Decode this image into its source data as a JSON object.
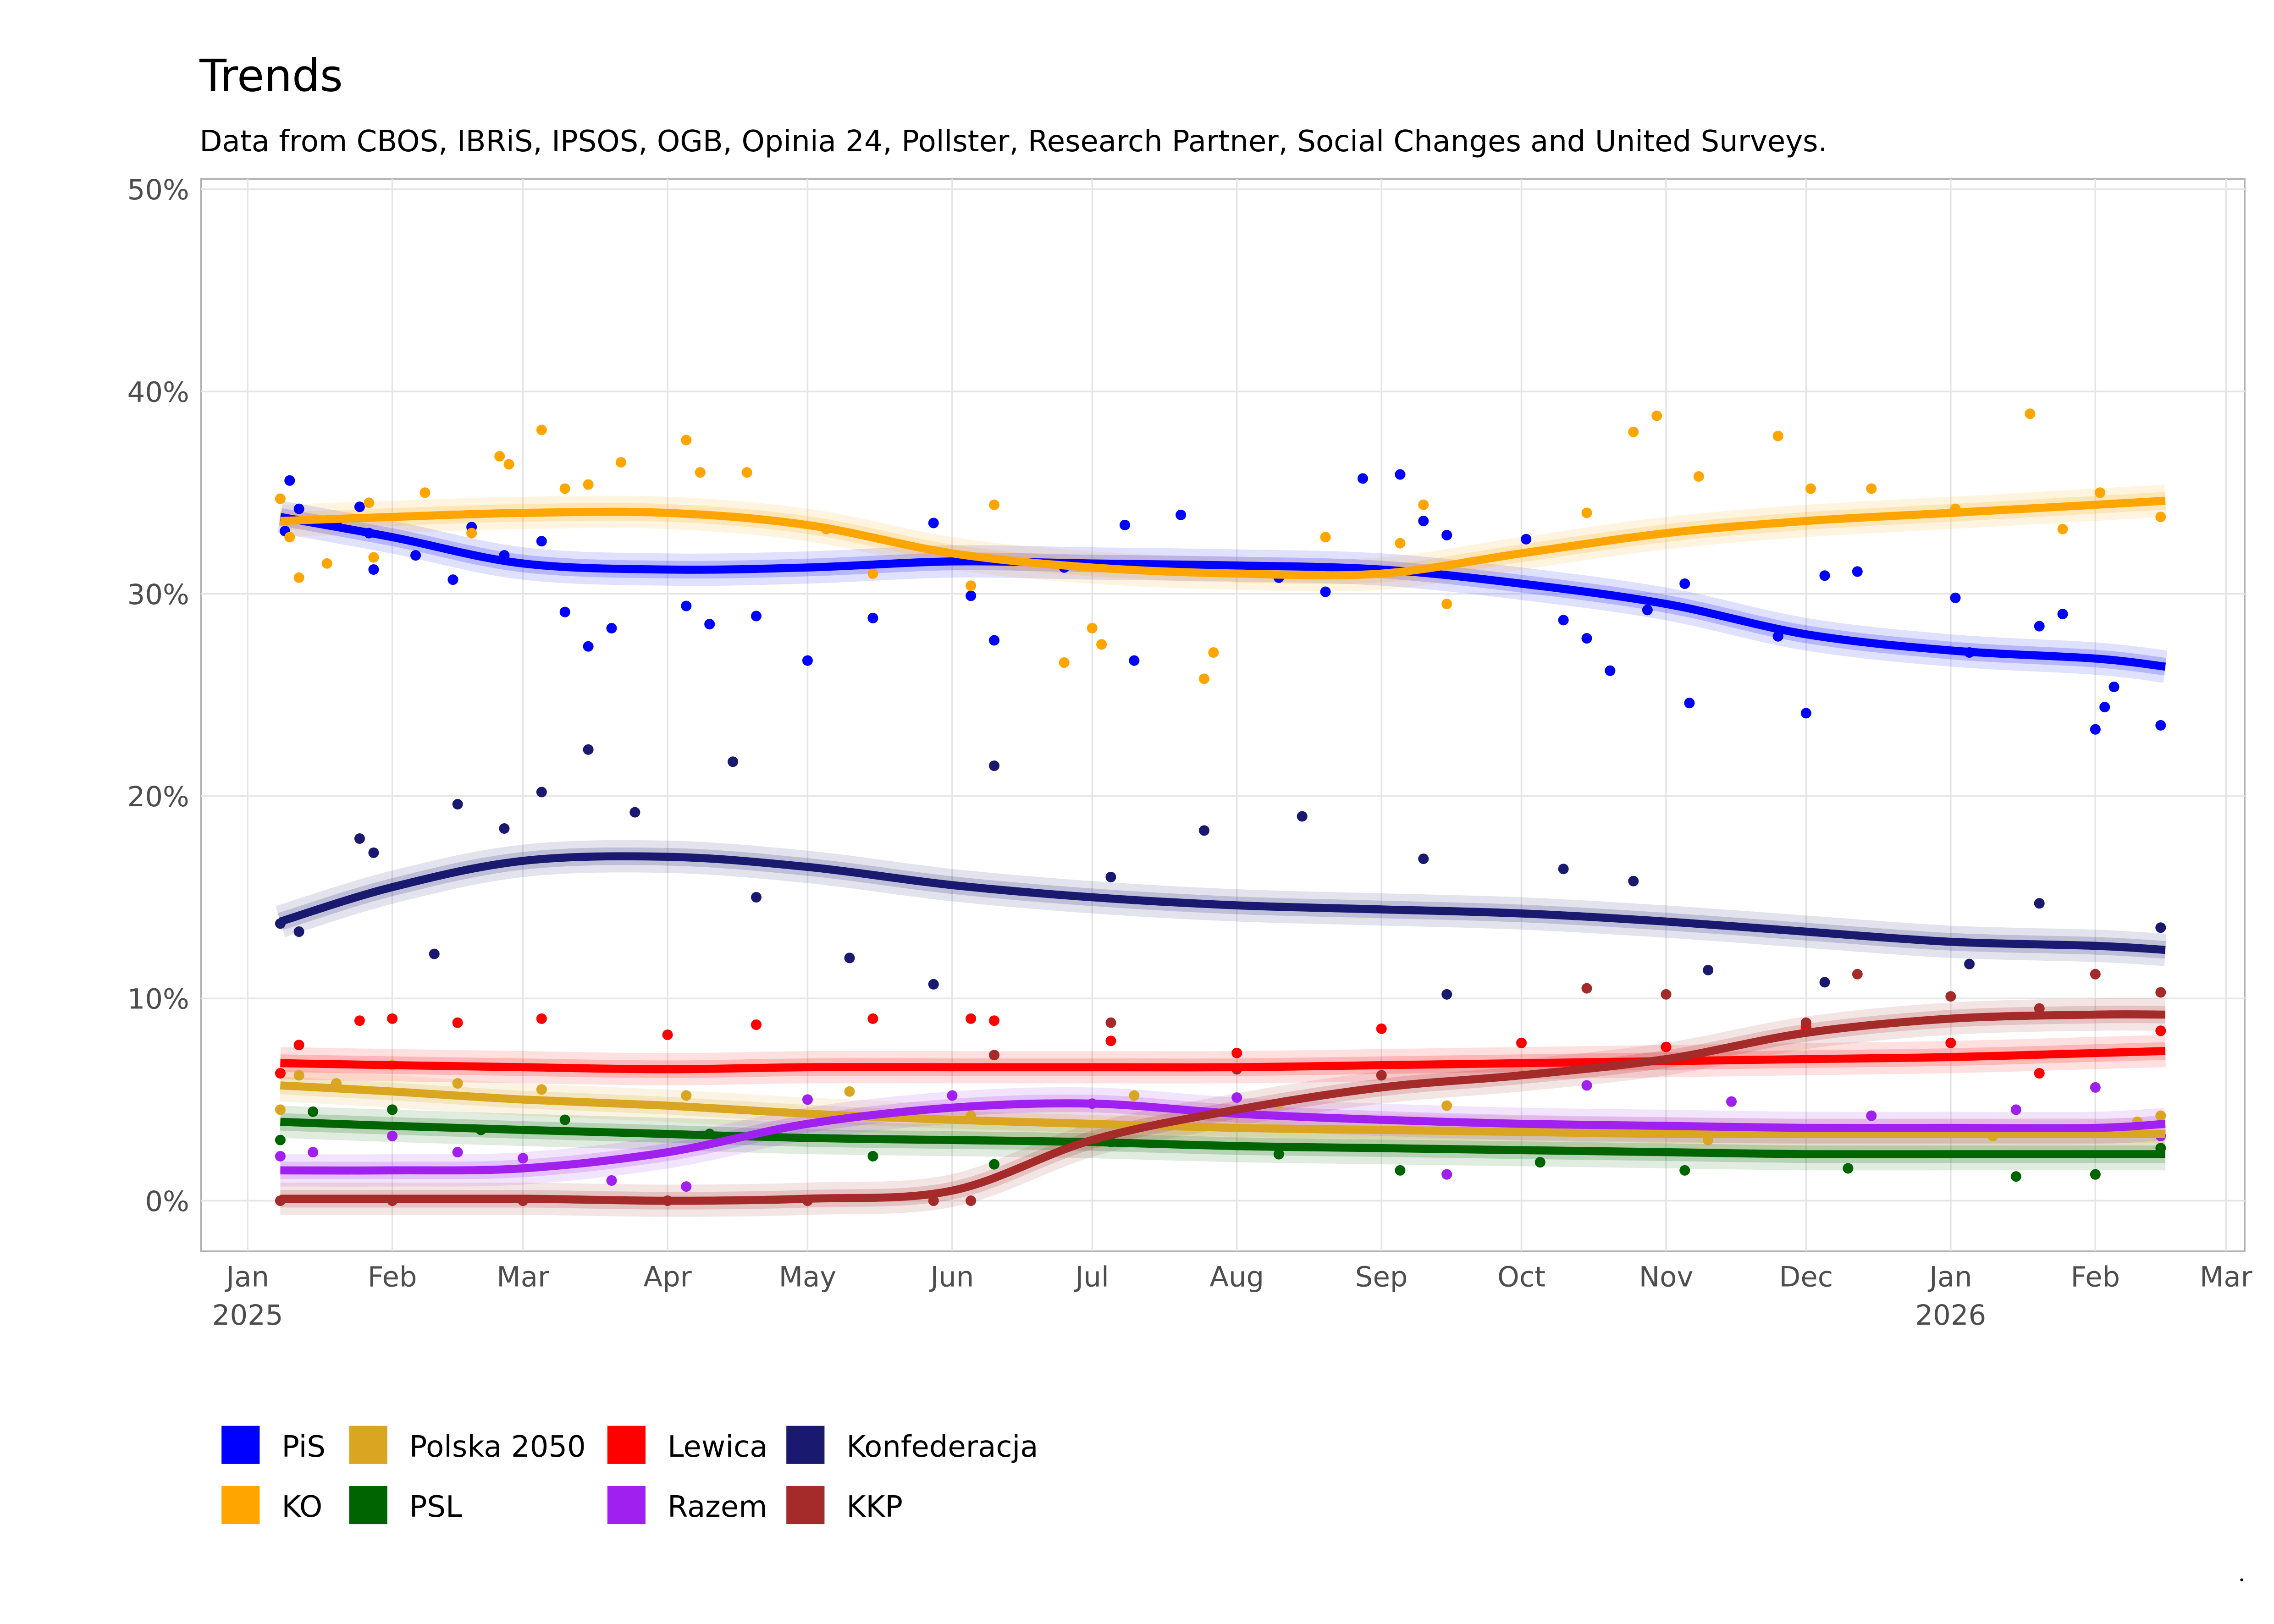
{
  "chart_data": {
    "type": "scatter",
    "title": "Trends",
    "subtitle": "Data from CBOS, IBRiS, IPSOS, OGB, Opinia 24, Pollster, Research Partner, Social Changes and United Surveys.",
    "xlabel": "",
    "ylabel": "",
    "ylim": [
      -2.5,
      50.5
    ],
    "xlim": [
      "2024-12-22",
      "2026-03-05"
    ],
    "yticks": [
      0,
      10,
      20,
      30,
      40,
      50
    ],
    "ytick_labels": [
      "0%",
      "10%",
      "20%",
      "30%",
      "40%",
      "50%"
    ],
    "xticks": [
      "2025-01-01",
      "2025-02-01",
      "2025-03-01",
      "2025-04-01",
      "2025-05-01",
      "2025-06-01",
      "2025-07-01",
      "2025-08-01",
      "2025-09-01",
      "2025-10-01",
      "2025-11-01",
      "2025-12-01",
      "2026-01-01",
      "2026-02-01",
      "2026-03-01"
    ],
    "xtick_labels": [
      "Jan\n2025",
      "Feb",
      "Mar",
      "Apr",
      "May",
      "Jun",
      "Jul",
      "Aug",
      "Sep",
      "Oct",
      "Nov",
      "Dec",
      "Jan\n2026",
      "Feb",
      "Mar"
    ],
    "grid": true,
    "legend_position": "bottom",
    "trend_dates": [
      "2025-01-08",
      "2025-02-01",
      "2025-03-01",
      "2025-04-01",
      "2025-05-01",
      "2025-06-01",
      "2025-07-01",
      "2025-08-01",
      "2025-09-01",
      "2025-10-01",
      "2025-11-01",
      "2025-12-01",
      "2026-01-01",
      "2026-02-01",
      "2026-02-16"
    ],
    "series": [
      {
        "name": "PiS",
        "color": "#0000ff",
        "trend": [
          33.8,
          32.8,
          31.5,
          31.2,
          31.3,
          31.6,
          31.5,
          31.4,
          31.2,
          30.5,
          29.5,
          28.0,
          27.2,
          26.8,
          26.4
        ],
        "points": [
          [
            "2025-01-09",
            33.1
          ],
          [
            "2025-01-10",
            35.6
          ],
          [
            "2025-01-12",
            34.2
          ],
          [
            "2025-01-20",
            33.5
          ],
          [
            "2025-01-25",
            34.3
          ],
          [
            "2025-01-27",
            33.0
          ],
          [
            "2025-01-28",
            31.2
          ],
          [
            "2025-02-06",
            31.9
          ],
          [
            "2025-02-14",
            30.7
          ],
          [
            "2025-02-18",
            33.3
          ],
          [
            "2025-02-25",
            31.9
          ],
          [
            "2025-03-05",
            32.6
          ],
          [
            "2025-03-10",
            29.1
          ],
          [
            "2025-03-15",
            27.4
          ],
          [
            "2025-03-20",
            28.3
          ],
          [
            "2025-04-05",
            29.4
          ],
          [
            "2025-04-10",
            28.5
          ],
          [
            "2025-04-20",
            28.9
          ],
          [
            "2025-05-01",
            26.7
          ],
          [
            "2025-05-15",
            28.8
          ],
          [
            "2025-05-28",
            33.5
          ],
          [
            "2025-06-05",
            29.9
          ],
          [
            "2025-06-10",
            27.7
          ],
          [
            "2025-06-25",
            31.3
          ],
          [
            "2025-07-08",
            33.4
          ],
          [
            "2025-07-10",
            26.7
          ],
          [
            "2025-07-20",
            33.9
          ],
          [
            "2025-08-10",
            30.8
          ],
          [
            "2025-08-20",
            30.1
          ],
          [
            "2025-08-28",
            35.7
          ],
          [
            "2025-09-05",
            35.9
          ],
          [
            "2025-09-10",
            33.6
          ],
          [
            "2025-09-15",
            32.9
          ],
          [
            "2025-10-02",
            32.7
          ],
          [
            "2025-10-10",
            28.7
          ],
          [
            "2025-10-15",
            27.8
          ],
          [
            "2025-10-20",
            26.2
          ],
          [
            "2025-10-28",
            29.2
          ],
          [
            "2025-11-05",
            30.5
          ],
          [
            "2025-11-06",
            24.6
          ],
          [
            "2025-11-25",
            27.9
          ],
          [
            "2025-12-01",
            24.1
          ],
          [
            "2025-12-05",
            30.9
          ],
          [
            "2025-12-12",
            31.1
          ],
          [
            "2026-01-02",
            29.8
          ],
          [
            "2026-01-05",
            27.1
          ],
          [
            "2026-01-20",
            28.4
          ],
          [
            "2026-01-25",
            29.0
          ],
          [
            "2026-02-01",
            23.3
          ],
          [
            "2026-02-03",
            24.4
          ],
          [
            "2026-02-05",
            25.4
          ],
          [
            "2026-02-15",
            23.5
          ]
        ]
      },
      {
        "name": "KO",
        "color": "#ffa500",
        "trend": [
          33.6,
          33.8,
          34.0,
          34.0,
          33.4,
          32.0,
          31.3,
          31.0,
          31.0,
          32.0,
          33.0,
          33.6,
          34.0,
          34.4,
          34.6
        ],
        "points": [
          [
            "2025-01-08",
            34.7
          ],
          [
            "2025-01-10",
            32.8
          ],
          [
            "2025-01-12",
            30.8
          ],
          [
            "2025-01-18",
            31.5
          ],
          [
            "2025-01-27",
            34.5
          ],
          [
            "2025-01-28",
            31.8
          ],
          [
            "2025-02-08",
            35.0
          ],
          [
            "2025-02-18",
            33.0
          ],
          [
            "2025-02-24",
            36.8
          ],
          [
            "2025-02-26",
            36.4
          ],
          [
            "2025-03-05",
            38.1
          ],
          [
            "2025-03-10",
            35.2
          ],
          [
            "2025-03-15",
            35.4
          ],
          [
            "2025-03-22",
            36.5
          ],
          [
            "2025-04-05",
            37.6
          ],
          [
            "2025-04-08",
            36.0
          ],
          [
            "2025-04-18",
            36.0
          ],
          [
            "2025-05-05",
            33.2
          ],
          [
            "2025-05-15",
            31.0
          ],
          [
            "2025-06-05",
            30.4
          ],
          [
            "2025-06-10",
            34.4
          ],
          [
            "2025-06-25",
            26.6
          ],
          [
            "2025-07-01",
            28.3
          ],
          [
            "2025-07-03",
            27.5
          ],
          [
            "2025-07-25",
            25.8
          ],
          [
            "2025-07-27",
            27.1
          ],
          [
            "2025-08-20",
            32.8
          ],
          [
            "2025-09-05",
            32.5
          ],
          [
            "2025-09-10",
            34.4
          ],
          [
            "2025-09-15",
            29.5
          ],
          [
            "2025-10-15",
            34.0
          ],
          [
            "2025-10-25",
            38.0
          ],
          [
            "2025-10-30",
            38.8
          ],
          [
            "2025-11-08",
            35.8
          ],
          [
            "2025-11-25",
            37.8
          ],
          [
            "2025-12-02",
            35.2
          ],
          [
            "2025-12-15",
            35.2
          ],
          [
            "2026-01-02",
            34.2
          ],
          [
            "2026-01-18",
            38.9
          ],
          [
            "2026-01-25",
            33.2
          ],
          [
            "2026-02-02",
            35.0
          ],
          [
            "2026-02-15",
            33.8
          ]
        ]
      },
      {
        "name": "Polska 2050",
        "color": "#daa520",
        "trend": [
          5.7,
          5.4,
          5.0,
          4.7,
          4.3,
          4.0,
          3.8,
          3.6,
          3.5,
          3.4,
          3.3,
          3.3,
          3.3,
          3.3,
          3.3
        ],
        "points": [
          [
            "2025-01-08",
            4.5
          ],
          [
            "2025-01-12",
            6.2
          ],
          [
            "2025-01-20",
            5.8
          ],
          [
            "2025-02-01",
            6.7
          ],
          [
            "2025-02-15",
            5.8
          ],
          [
            "2025-03-05",
            5.5
          ],
          [
            "2025-04-05",
            5.2
          ],
          [
            "2025-05-10",
            5.4
          ],
          [
            "2025-06-05",
            4.2
          ],
          [
            "2025-07-10",
            5.2
          ],
          [
            "2025-08-10",
            4.8
          ],
          [
            "2025-09-15",
            4.7
          ],
          [
            "2025-10-15",
            3.6
          ],
          [
            "2025-11-10",
            3.0
          ],
          [
            "2025-12-05",
            3.5
          ],
          [
            "2026-01-10",
            3.2
          ],
          [
            "2026-02-10",
            3.9
          ],
          [
            "2026-02-15",
            4.2
          ]
        ]
      },
      {
        "name": "PSL",
        "color": "#006400",
        "trend": [
          3.9,
          3.7,
          3.5,
          3.3,
          3.1,
          3.0,
          2.9,
          2.7,
          2.6,
          2.5,
          2.4,
          2.3,
          2.3,
          2.3,
          2.3
        ],
        "points": [
          [
            "2025-01-08",
            3.0
          ],
          [
            "2025-01-15",
            4.4
          ],
          [
            "2025-02-01",
            4.5
          ],
          [
            "2025-02-20",
            3.5
          ],
          [
            "2025-03-10",
            4.0
          ],
          [
            "2025-04-10",
            3.3
          ],
          [
            "2025-05-15",
            2.2
          ],
          [
            "2025-06-10",
            1.8
          ],
          [
            "2025-07-05",
            2.9
          ],
          [
            "2025-08-10",
            2.3
          ],
          [
            "2025-09-05",
            1.5
          ],
          [
            "2025-10-05",
            1.9
          ],
          [
            "2025-11-05",
            1.5
          ],
          [
            "2025-12-10",
            1.6
          ],
          [
            "2026-01-15",
            1.2
          ],
          [
            "2026-02-01",
            1.3
          ],
          [
            "2026-02-15",
            2.6
          ]
        ]
      },
      {
        "name": "Lewica",
        "color": "#ff0000",
        "trend": [
          6.8,
          6.7,
          6.6,
          6.5,
          6.6,
          6.6,
          6.6,
          6.6,
          6.7,
          6.8,
          6.9,
          7.0,
          7.1,
          7.3,
          7.4
        ],
        "points": [
          [
            "2025-01-08",
            6.3
          ],
          [
            "2025-01-12",
            7.7
          ],
          [
            "2025-01-25",
            8.9
          ],
          [
            "2025-02-01",
            9.0
          ],
          [
            "2025-02-15",
            8.8
          ],
          [
            "2025-03-05",
            9.0
          ],
          [
            "2025-04-01",
            8.2
          ],
          [
            "2025-04-20",
            8.7
          ],
          [
            "2025-05-15",
            9.0
          ],
          [
            "2025-06-05",
            9.0
          ],
          [
            "2025-06-10",
            8.9
          ],
          [
            "2025-07-05",
            7.9
          ],
          [
            "2025-08-01",
            7.3
          ],
          [
            "2025-09-01",
            8.5
          ],
          [
            "2025-10-01",
            7.8
          ],
          [
            "2025-11-01",
            7.6
          ],
          [
            "2025-12-01",
            8.6
          ],
          [
            "2026-01-01",
            7.8
          ],
          [
            "2026-01-20",
            6.3
          ],
          [
            "2026-02-15",
            8.4
          ]
        ]
      },
      {
        "name": "Razem",
        "color": "#a020f0",
        "trend": [
          1.5,
          1.5,
          1.6,
          2.4,
          3.8,
          4.6,
          4.8,
          4.3,
          4.0,
          3.8,
          3.7,
          3.6,
          3.6,
          3.6,
          3.8
        ],
        "points": [
          [
            "2025-01-08",
            2.2
          ],
          [
            "2025-01-15",
            2.4
          ],
          [
            "2025-02-01",
            3.2
          ],
          [
            "2025-02-15",
            2.4
          ],
          [
            "2025-03-01",
            2.1
          ],
          [
            "2025-03-20",
            1.0
          ],
          [
            "2025-04-05",
            0.7
          ],
          [
            "2025-05-01",
            5.0
          ],
          [
            "2025-06-01",
            5.2
          ],
          [
            "2025-07-01",
            4.8
          ],
          [
            "2025-08-01",
            5.1
          ],
          [
            "2025-09-15",
            1.3
          ],
          [
            "2025-10-15",
            5.7
          ],
          [
            "2025-11-15",
            4.9
          ],
          [
            "2025-12-15",
            4.2
          ],
          [
            "2026-01-15",
            4.5
          ],
          [
            "2026-02-01",
            5.6
          ],
          [
            "2026-02-15",
            3.2
          ]
        ]
      },
      {
        "name": "Konfederacja",
        "color": "#191970",
        "trend": [
          13.8,
          15.5,
          16.8,
          17.0,
          16.5,
          15.6,
          15.0,
          14.6,
          14.4,
          14.2,
          13.8,
          13.3,
          12.8,
          12.6,
          12.4
        ],
        "points": [
          [
            "2025-01-08",
            13.7
          ],
          [
            "2025-01-12",
            13.3
          ],
          [
            "2025-01-25",
            17.9
          ],
          [
            "2025-01-28",
            17.2
          ],
          [
            "2025-02-10",
            12.2
          ],
          [
            "2025-02-15",
            19.6
          ],
          [
            "2025-02-25",
            18.4
          ],
          [
            "2025-03-05",
            20.2
          ],
          [
            "2025-03-15",
            22.3
          ],
          [
            "2025-03-25",
            19.2
          ],
          [
            "2025-04-15",
            21.7
          ],
          [
            "2025-04-20",
            15.0
          ],
          [
            "2025-05-10",
            12.0
          ],
          [
            "2025-05-28",
            10.7
          ],
          [
            "2025-06-10",
            21.5
          ],
          [
            "2025-07-05",
            16.0
          ],
          [
            "2025-07-25",
            18.3
          ],
          [
            "2025-08-15",
            19.0
          ],
          [
            "2025-09-10",
            16.9
          ],
          [
            "2025-09-15",
            10.2
          ],
          [
            "2025-10-10",
            16.4
          ],
          [
            "2025-10-25",
            15.8
          ],
          [
            "2025-11-10",
            11.4
          ],
          [
            "2025-12-05",
            10.8
          ],
          [
            "2026-01-05",
            11.7
          ],
          [
            "2026-01-20",
            14.7
          ],
          [
            "2026-02-15",
            13.5
          ]
        ]
      },
      {
        "name": "KKP",
        "color": "#a52a2a",
        "trend": [
          0.1,
          0.1,
          0.1,
          0.0,
          0.1,
          0.5,
          3.0,
          4.5,
          5.6,
          6.2,
          7.0,
          8.3,
          9.0,
          9.2,
          9.2
        ],
        "points": [
          [
            "2025-01-08",
            0.0
          ],
          [
            "2025-02-01",
            0.0
          ],
          [
            "2025-03-01",
            0.0
          ],
          [
            "2025-04-01",
            0.0
          ],
          [
            "2025-05-01",
            0.0
          ],
          [
            "2025-05-28",
            0.0
          ],
          [
            "2025-06-05",
            0.0
          ],
          [
            "2025-06-10",
            7.2
          ],
          [
            "2025-07-05",
            8.8
          ],
          [
            "2025-08-01",
            6.5
          ],
          [
            "2025-09-01",
            6.2
          ],
          [
            "2025-10-15",
            10.5
          ],
          [
            "2025-11-01",
            10.2
          ],
          [
            "2025-12-01",
            8.8
          ],
          [
            "2025-12-12",
            11.2
          ],
          [
            "2026-01-01",
            10.1
          ],
          [
            "2026-01-20",
            9.5
          ],
          [
            "2026-02-01",
            11.2
          ],
          [
            "2026-02-15",
            10.3
          ]
        ]
      }
    ]
  }
}
